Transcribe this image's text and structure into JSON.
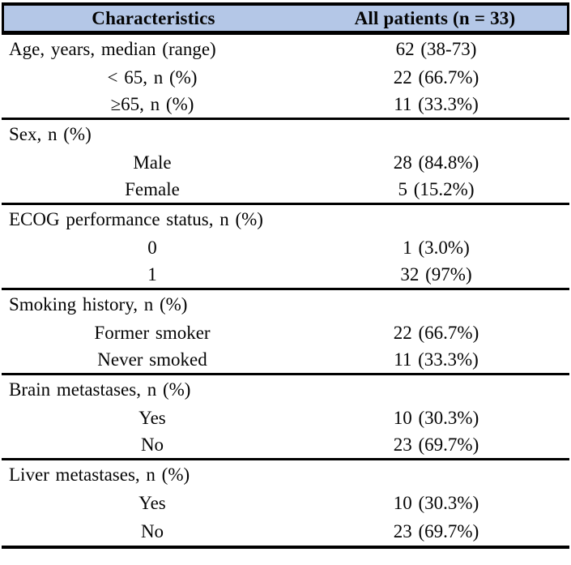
{
  "table": {
    "header": {
      "col1": "Characteristics",
      "col2": "All patients (n = 33)",
      "header_bg": "#B4C7E7",
      "border_color": "#000000"
    },
    "sections": [
      {
        "rows": [
          {
            "label": "Age, years, median (range)",
            "value": "62 (38-73)"
          },
          {
            "label": "< 65, n (%)",
            "value": "22 (66.7%)"
          },
          {
            "label": "≥65, n (%)",
            "value": "11 (33.3%)"
          }
        ]
      },
      {
        "rows": [
          {
            "label": "Sex, n (%)",
            "value": ""
          },
          {
            "label": "Male",
            "value": "28 (84.8%)"
          },
          {
            "label": "Female",
            "value": "5 (15.2%)"
          }
        ]
      },
      {
        "rows": [
          {
            "label": "ECOG performance status, n (%)",
            "value": ""
          },
          {
            "label": "0",
            "value": "1 (3.0%)"
          },
          {
            "label": "1",
            "value": "32 (97%)"
          }
        ]
      },
      {
        "rows": [
          {
            "label": "Smoking history, n (%)",
            "value": ""
          },
          {
            "label": "Former smoker",
            "value": "22 (66.7%)"
          },
          {
            "label": "Never smoked",
            "value": "11 (33.3%)"
          }
        ]
      },
      {
        "rows": [
          {
            "label": "Brain metastases, n (%)",
            "value": ""
          },
          {
            "label": "Yes",
            "value": "10 (30.3%)"
          },
          {
            "label": "No",
            "value": "23 (69.7%)"
          }
        ]
      },
      {
        "rows": [
          {
            "label": "Liver metastases, n (%)",
            "value": ""
          },
          {
            "label": "Yes",
            "value": "10 (30.3%)"
          },
          {
            "label": "No",
            "value": "23 (69.7%)"
          }
        ]
      }
    ]
  }
}
